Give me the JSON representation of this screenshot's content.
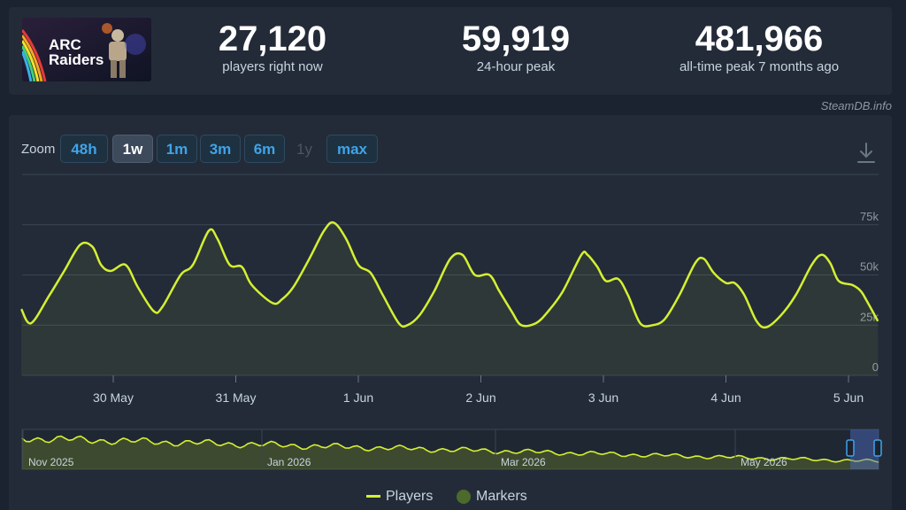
{
  "game": {
    "logo_text": [
      "ARC",
      "Raiders"
    ]
  },
  "stats": [
    {
      "value": "27,120",
      "label": "players right now"
    },
    {
      "value": "59,919",
      "label": "24-hour peak"
    },
    {
      "value": "481,966",
      "label": "all-time peak 7 months ago"
    }
  ],
  "credit": "SteamDB.info",
  "zoom": {
    "label": "Zoom",
    "options": [
      {
        "label": "48h",
        "state": "normal"
      },
      {
        "label": "1w",
        "state": "active"
      },
      {
        "label": "1m",
        "state": "normal"
      },
      {
        "label": "3m",
        "state": "normal"
      },
      {
        "label": "6m",
        "state": "normal"
      },
      {
        "label": "1y",
        "state": "disabled"
      },
      {
        "label": "max",
        "state": "normal"
      }
    ]
  },
  "colors": {
    "line": "#d4f032",
    "marker": "#4c6a2c",
    "background": "#232b38"
  },
  "chart_data": {
    "type": "line",
    "y_ticks": [
      "0",
      "25k",
      "50k",
      "75k"
    ],
    "ylim": [
      0,
      100000
    ],
    "x_ticks": [
      "30 May",
      "31 May",
      "1 Jun",
      "2 Jun",
      "3 Jun",
      "4 Jun",
      "5 Jun"
    ],
    "series": [
      {
        "name": "Players",
        "points": [
          [
            -0.75,
            33000
          ],
          [
            -0.67,
            26000
          ],
          [
            -0.52,
            40000
          ],
          [
            -0.4,
            52000
          ],
          [
            -0.27,
            65000
          ],
          [
            -0.17,
            64000
          ],
          [
            -0.1,
            55000
          ],
          [
            -0.02,
            52000
          ],
          [
            0.1,
            55000
          ],
          [
            0.2,
            44000
          ],
          [
            0.33,
            32000
          ],
          [
            0.4,
            34000
          ],
          [
            0.55,
            50000
          ],
          [
            0.65,
            55000
          ],
          [
            0.78,
            72000
          ],
          [
            0.85,
            68000
          ],
          [
            0.95,
            55000
          ],
          [
            1.05,
            54000
          ],
          [
            1.13,
            45000
          ],
          [
            1.3,
            36000
          ],
          [
            1.38,
            38000
          ],
          [
            1.47,
            44000
          ],
          [
            1.6,
            58000
          ],
          [
            1.72,
            72000
          ],
          [
            1.8,
            76000
          ],
          [
            1.9,
            68000
          ],
          [
            2.0,
            55000
          ],
          [
            2.1,
            51000
          ],
          [
            2.2,
            40000
          ],
          [
            2.33,
            26000
          ],
          [
            2.4,
            25000
          ],
          [
            2.5,
            30000
          ],
          [
            2.62,
            42000
          ],
          [
            2.75,
            58000
          ],
          [
            2.85,
            60000
          ],
          [
            2.95,
            50000
          ],
          [
            3.07,
            50000
          ],
          [
            3.15,
            42000
          ],
          [
            3.25,
            32000
          ],
          [
            3.33,
            25000
          ],
          [
            3.45,
            26000
          ],
          [
            3.55,
            32000
          ],
          [
            3.67,
            42000
          ],
          [
            3.82,
            60000
          ],
          [
            3.87,
            60000
          ],
          [
            3.95,
            54000
          ],
          [
            4.02,
            47000
          ],
          [
            4.12,
            48000
          ],
          [
            4.2,
            40000
          ],
          [
            4.3,
            26000
          ],
          [
            4.4,
            25000
          ],
          [
            4.5,
            28000
          ],
          [
            4.62,
            40000
          ],
          [
            4.75,
            56000
          ],
          [
            4.82,
            58000
          ],
          [
            4.9,
            51000
          ],
          [
            5.0,
            46000
          ],
          [
            5.07,
            46000
          ],
          [
            5.15,
            40000
          ],
          [
            5.25,
            27000
          ],
          [
            5.33,
            24000
          ],
          [
            5.45,
            30000
          ],
          [
            5.57,
            40000
          ],
          [
            5.7,
            55000
          ],
          [
            5.78,
            60000
          ],
          [
            5.85,
            56000
          ],
          [
            5.92,
            47000
          ],
          [
            6.03,
            45000
          ],
          [
            6.1,
            42000
          ],
          [
            6.15,
            37000
          ],
          [
            6.24,
            27000
          ]
        ]
      }
    ],
    "navigator": {
      "x_ticks": [
        "Nov 2025",
        "Jan 2026",
        "Mar 2026",
        "May 2026"
      ]
    },
    "legend": [
      {
        "name": "Players",
        "symbol": "line"
      },
      {
        "name": "Markers",
        "symbol": "circle"
      }
    ],
    "legend_position": "bottom-center",
    "grid": true
  }
}
